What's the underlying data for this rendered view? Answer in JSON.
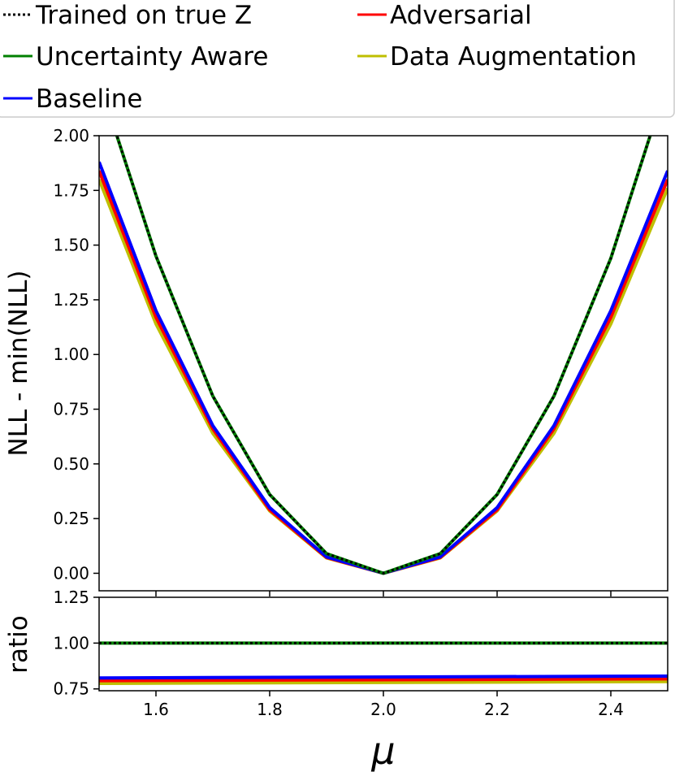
{
  "chart_data": [
    {
      "type": "line",
      "title": "",
      "xlabel": "",
      "ylabel": "NLL - min(NLL)",
      "xlim": [
        1.5,
        2.5
      ],
      "ylim": [
        -0.08,
        2.0
      ],
      "x": [
        1.5,
        1.6,
        1.7,
        1.8,
        1.9,
        2.0,
        2.1,
        2.2,
        2.3,
        2.4,
        2.5
      ],
      "yticks": [
        "0.00",
        "0.25",
        "0.50",
        "0.75",
        "1.00",
        "1.25",
        "1.50",
        "1.75",
        "2.00"
      ],
      "grid": false,
      "legend_placement": "top",
      "series": [
        {
          "name": "Trained on true Z",
          "color": "#000000",
          "style": "dotted",
          "values": [
            2.25,
            1.45,
            0.81,
            0.36,
            0.09,
            0.0,
            0.09,
            0.36,
            0.81,
            1.44,
            2.25
          ]
        },
        {
          "name": "Uncertainty Aware",
          "color": "#008000",
          "style": "solid",
          "values": [
            2.25,
            1.45,
            0.81,
            0.36,
            0.09,
            0.0,
            0.09,
            0.36,
            0.81,
            1.44,
            2.25
          ]
        },
        {
          "name": "Baseline",
          "color": "#0000ff",
          "style": "solid",
          "values": [
            1.88,
            1.2,
            0.675,
            0.3,
            0.075,
            0.0,
            0.075,
            0.3,
            0.675,
            1.2,
            1.84
          ]
        },
        {
          "name": "Adversarial",
          "color": "#ff0000",
          "style": "solid",
          "values": [
            1.84,
            1.17,
            0.66,
            0.29,
            0.072,
            0.0,
            0.072,
            0.29,
            0.66,
            1.17,
            1.8
          ]
        },
        {
          "name": "Data Augmentation",
          "color": "#bfbf00",
          "style": "solid",
          "values": [
            1.8,
            1.14,
            0.64,
            0.285,
            0.07,
            0.0,
            0.07,
            0.285,
            0.64,
            1.14,
            1.76
          ]
        }
      ]
    },
    {
      "type": "line",
      "title": "",
      "xlabel": "μ",
      "ylabel": "ratio",
      "xlim": [
        1.5,
        2.5
      ],
      "ylim": [
        0.74,
        1.25
      ],
      "x": [
        1.5,
        2.5
      ],
      "xticks": [
        "1.6",
        "1.8",
        "2.0",
        "2.2",
        "2.4"
      ],
      "yticks": [
        "0.75",
        "1.00",
        "1.25"
      ],
      "grid": false,
      "series": [
        {
          "name": "Trained on true Z",
          "color": "#000000",
          "style": "dotted",
          "values": [
            1.0,
            1.0
          ]
        },
        {
          "name": "Uncertainty Aware",
          "color": "#008000",
          "style": "solid",
          "values": [
            1.0,
            1.0
          ]
        },
        {
          "name": "Baseline",
          "color": "#0000ff",
          "style": "solid",
          "values": [
            0.81,
            0.82
          ]
        },
        {
          "name": "Adversarial",
          "color": "#ff0000",
          "style": "solid",
          "values": [
            0.795,
            0.805
          ]
        },
        {
          "name": "Data Augmentation",
          "color": "#bfbf00",
          "style": "solid",
          "values": [
            0.78,
            0.79
          ]
        }
      ]
    }
  ],
  "legend": {
    "entries": [
      {
        "label": "Trained on true Z",
        "color": "#000000",
        "style": "dotted"
      },
      {
        "label": "Adversarial",
        "color": "#ff0000",
        "style": "solid"
      },
      {
        "label": "Uncertainty Aware",
        "color": "#008000",
        "style": "solid"
      },
      {
        "label": "Data Augmentation",
        "color": "#bfbf00",
        "style": "solid"
      },
      {
        "label": "Baseline",
        "color": "#0000ff",
        "style": "solid"
      }
    ]
  }
}
